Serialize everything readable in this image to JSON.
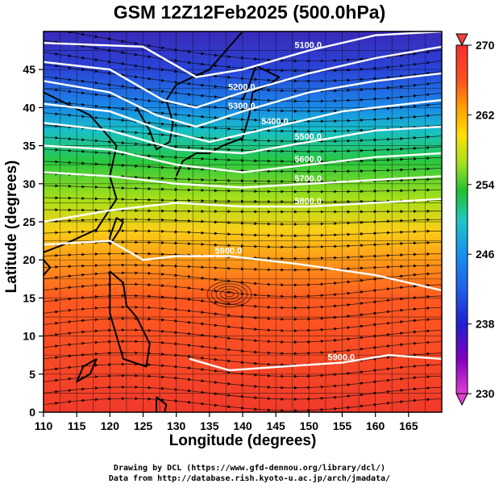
{
  "title": "GSM 12Z12Feb2025 (500.0hPa)",
  "x_axis": {
    "label": "Longitude (degrees)",
    "ticks": [
      110,
      115,
      120,
      125,
      130,
      135,
      140,
      145,
      150,
      155,
      160,
      165
    ],
    "range": [
      110,
      170
    ]
  },
  "y_axis": {
    "label": "Latitude  (degrees)",
    "ticks": [
      0,
      5,
      10,
      15,
      20,
      25,
      30,
      35,
      40,
      45
    ],
    "range": [
      0,
      50
    ]
  },
  "colorbar": {
    "labels": [
      230,
      238,
      246,
      254,
      262,
      270
    ],
    "range": [
      230,
      270
    ],
    "colors": [
      "#e040d0",
      "#8000c0",
      "#2020d0",
      "#1890f0",
      "#20c8c0",
      "#20c030",
      "#a0e020",
      "#ffe000",
      "#ffa000",
      "#ff5020",
      "#f03030"
    ]
  },
  "contour_labels": [
    "5100.0",
    "5200.0",
    "5300.0",
    "5400.0",
    "5500.0",
    "5600.0",
    "5700.0",
    "5800.0",
    "5900.0",
    "5900.0"
  ],
  "credits": {
    "line1": "Drawing by DCL (https://www.gfd-dennou.org/library/dcl/)",
    "line2": "Data from http://database.rish.kyoto-u.ac.jp/arch/jmadata/"
  },
  "chart_data": {
    "type": "heatmap",
    "title": "GSM 12Z12Feb2025 (500.0hPa)",
    "xlabel": "Longitude (degrees)",
    "ylabel": "Latitude  (degrees)",
    "xlim": [
      110,
      170
    ],
    "ylim": [
      0,
      50
    ],
    "colorbar_range": [
      230,
      270
    ],
    "colorbar_labels": [
      230,
      238,
      246,
      254,
      262,
      270
    ],
    "temperature_by_latitude": [
      {
        "lat": 48,
        "value": 236
      },
      {
        "lat": 43,
        "value": 242
      },
      {
        "lat": 38,
        "value": 250
      },
      {
        "lat": 33,
        "value": 256
      },
      {
        "lat": 28,
        "value": 260
      },
      {
        "lat": 22,
        "value": 264
      },
      {
        "lat": 15,
        "value": 267
      },
      {
        "lat": 5,
        "value": 268
      }
    ],
    "contours": [
      {
        "level": 5100.0,
        "lon": [
          110,
          125,
          133,
          140,
          150,
          160,
          170
        ],
        "lat": [
          48.5,
          48,
          44,
          45,
          47.5,
          49.5,
          50
        ]
      },
      {
        "level": 5200.0,
        "lon": [
          110,
          120,
          128,
          133,
          140,
          150,
          160,
          170
        ],
        "lat": [
          46,
          45,
          41,
          40,
          42,
          44.5,
          46.5,
          48
        ]
      },
      {
        "level": 5300.0,
        "lon": [
          110,
          120,
          127,
          133,
          140,
          150,
          160,
          170
        ],
        "lat": [
          43.5,
          42,
          39,
          37.5,
          39.5,
          42,
          43.5,
          44.5
        ]
      },
      {
        "level": 5400.0,
        "lon": [
          110,
          120,
          128,
          135,
          145,
          155,
          165,
          170
        ],
        "lat": [
          40.5,
          39.5,
          37,
          35.5,
          37.5,
          39.5,
          40.5,
          41
        ]
      },
      {
        "level": 5500.0,
        "lon": [
          110,
          120,
          130,
          140,
          150,
          160,
          170
        ],
        "lat": [
          38,
          37,
          34.5,
          34,
          35.5,
          37,
          37.5
        ]
      },
      {
        "level": 5600.0,
        "lon": [
          110,
          120,
          130,
          140,
          150,
          160,
          170
        ],
        "lat": [
          35,
          34.5,
          32.5,
          31.5,
          32.5,
          33.5,
          34
        ]
      },
      {
        "level": 5700.0,
        "lon": [
          110,
          120,
          130,
          140,
          150,
          160,
          170
        ],
        "lat": [
          31.5,
          31,
          30,
          29.5,
          30,
          30.5,
          31
        ]
      },
      {
        "level": 5800.0,
        "lon": [
          110,
          120,
          130,
          140,
          150,
          160,
          170
        ],
        "lat": [
          25,
          26.5,
          27.5,
          27,
          27,
          27.5,
          28
        ]
      },
      {
        "level": 5900.0,
        "lon": [
          110,
          120,
          125,
          130,
          138,
          148,
          160,
          170
        ],
        "lat": [
          22,
          22.5,
          20,
          20.5,
          20.5,
          19.5,
          18,
          16
        ]
      },
      {
        "level": 5900.0,
        "lon": [
          132,
          138,
          146,
          155,
          162,
          170
        ],
        "lat": [
          7,
          5.5,
          6,
          6.5,
          7.5,
          7
        ]
      }
    ]
  }
}
